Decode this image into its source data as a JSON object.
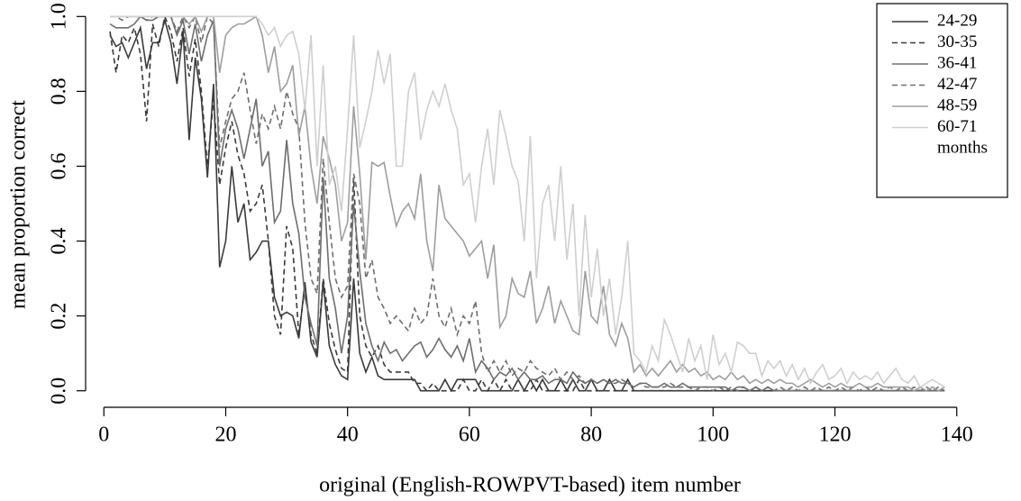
{
  "chart_data": {
    "type": "line",
    "xlabel": "original (English-ROWPVT-based) item number",
    "ylabel": "mean proportion correct",
    "legend_note": "months",
    "legend": "top-right",
    "x": [
      1,
      2,
      3,
      4,
      5,
      6,
      7,
      8,
      9,
      10,
      11,
      12,
      13,
      14,
      15,
      16,
      17,
      18,
      19,
      20,
      21,
      22,
      23,
      24,
      25,
      26,
      27,
      28,
      29,
      30,
      31,
      32,
      33,
      34,
      35,
      36,
      37,
      38,
      39,
      40,
      41,
      42,
      43,
      44,
      45,
      46,
      47,
      48,
      49,
      50,
      51,
      52,
      53,
      54,
      55,
      56,
      57,
      58,
      59,
      60,
      61,
      62,
      63,
      64,
      65,
      66,
      67,
      68,
      69,
      70,
      71,
      72,
      73,
      74,
      75,
      76,
      77,
      78,
      79,
      80,
      81,
      82,
      83,
      84,
      85,
      86,
      87,
      88,
      89,
      90,
      91,
      92,
      93,
      94,
      95,
      96,
      97,
      98,
      99,
      100,
      101,
      102,
      103,
      104,
      105,
      106,
      107,
      108,
      109,
      110,
      111,
      112,
      113,
      114,
      115,
      116,
      117,
      118,
      119,
      120,
      121,
      122,
      123,
      124,
      125,
      126,
      127,
      128,
      129,
      130,
      131,
      132,
      133,
      134,
      135,
      136,
      137,
      138
    ],
    "xlim": [
      -3,
      143
    ],
    "ylim": [
      -0.02,
      1.02
    ],
    "xticks": [
      0,
      20,
      40,
      60,
      80,
      100,
      120,
      140
    ],
    "yticks": [
      {
        "value": 0,
        "label": "0.0"
      },
      0.2,
      0.4,
      0.6,
      0.8,
      {
        "value": 1,
        "label": "1.0"
      }
    ],
    "series": [
      {
        "name": "24-29",
        "color": "#3a3a3a",
        "dashed": false,
        "values": [
          0.95,
          0.92,
          0.93,
          0.89,
          0.93,
          0.97,
          0.86,
          0.93,
          0.93,
          0.99,
          0.93,
          0.82,
          0.96,
          0.67,
          0.89,
          0.78,
          0.57,
          0.82,
          0.33,
          0.4,
          0.6,
          0.45,
          0.5,
          0.35,
          0.37,
          0.4,
          0.4,
          0.25,
          0.2,
          0.21,
          0.2,
          0.14,
          0.29,
          0.13,
          0.09,
          0.29,
          0.12,
          0.07,
          0.04,
          0.03,
          0.3,
          0.1,
          0.05,
          0.09,
          0.04,
          0.03,
          0.03,
          0.03,
          0.03,
          0.03,
          0.03,
          0,
          0,
          0,
          0,
          0.03,
          0,
          0.03,
          0.03,
          0.03,
          0.03,
          0,
          0,
          0,
          0,
          0,
          0,
          0.03,
          0,
          0.03,
          0,
          0.03,
          0,
          0,
          0.03,
          0,
          0.03,
          0,
          0,
          0.03,
          0,
          0,
          0.03,
          0,
          0,
          0.03,
          0,
          0,
          0,
          0,
          0,
          0,
          0,
          0,
          0,
          0,
          0,
          0,
          0,
          0,
          0,
          0,
          0,
          0,
          0,
          0,
          0,
          0,
          0,
          0,
          0,
          0,
          0,
          0,
          0,
          0,
          0,
          0,
          0,
          0,
          0,
          0,
          0,
          0,
          0,
          0,
          0,
          0,
          0,
          0,
          0,
          0,
          0,
          0,
          0,
          0,
          0,
          0
        ]
      },
      {
        "name": "30-35",
        "color": "#3a3a3a",
        "dashed": true,
        "values": [
          0.96,
          0.85,
          0.95,
          0.93,
          0.97,
          0.9,
          0.72,
          0.98,
          0.92,
          1.0,
          0.96,
          0.88,
          0.97,
          0.84,
          0.94,
          0.8,
          0.6,
          0.78,
          0.55,
          0.65,
          0.72,
          0.63,
          0.58,
          0.48,
          0.5,
          0.55,
          0.4,
          0.2,
          0.15,
          0.44,
          0.38,
          0.15,
          0.28,
          0.15,
          0.1,
          0.3,
          0.18,
          0.11,
          0.06,
          0.05,
          0.57,
          0.2,
          0.12,
          0.09,
          0.12,
          0.07,
          0.05,
          0.05,
          0.05,
          0.05,
          0.02,
          0.02,
          0,
          0.02,
          0,
          0,
          0,
          0,
          0.03,
          0,
          0,
          0.03,
          0,
          0.03,
          0,
          0.03,
          0,
          0,
          0,
          0,
          0.03,
          0,
          0,
          0,
          0,
          0,
          0,
          0.03,
          0,
          0,
          0,
          0,
          0,
          0,
          0,
          0,
          0,
          0,
          0,
          0,
          0,
          0,
          0,
          0,
          0,
          0,
          0,
          0,
          0,
          0,
          0,
          0,
          0,
          0,
          0,
          0,
          0,
          0,
          0,
          0,
          0,
          0,
          0,
          0,
          0,
          0,
          0,
          0,
          0,
          0,
          0,
          0,
          0,
          0,
          0,
          0,
          0,
          0,
          0,
          0,
          0,
          0,
          0,
          0,
          0,
          0,
          0,
          0
        ]
      },
      {
        "name": "36-41",
        "color": "#6e6e6e",
        "dashed": false,
        "values": [
          0.98,
          0.97,
          0.97,
          0.97,
          0.98,
          1.0,
          0.99,
          0.99,
          1.0,
          1.0,
          1.0,
          0.95,
          0.99,
          0.9,
          0.98,
          0.88,
          0.95,
          0.99,
          0.6,
          0.7,
          0.75,
          0.7,
          0.62,
          0.7,
          0.78,
          0.6,
          0.64,
          0.45,
          0.48,
          0.67,
          0.5,
          0.42,
          0.25,
          0.18,
          0.12,
          0.57,
          0.3,
          0.22,
          0.1,
          0.2,
          0.5,
          0.32,
          0.18,
          0.12,
          0.08,
          0.13,
          0.1,
          0.11,
          0.08,
          0.1,
          0.12,
          0.13,
          0.09,
          0.11,
          0.14,
          0.11,
          0.09,
          0.12,
          0.08,
          0.14,
          0.05,
          0.08,
          0.06,
          0.03,
          0.05,
          0.04,
          0.06,
          0.03,
          0.05,
          0.03,
          0.03,
          0.04,
          0.02,
          0.03,
          0.03,
          0.02,
          0.05,
          0.03,
          0.02,
          0.03,
          0.02,
          0.03,
          0.02,
          0.03,
          0.02,
          0.02,
          0.01,
          0.02,
          0.02,
          0.01,
          0.01,
          0.02,
          0.01,
          0.01,
          0.02,
          0.01,
          0.01,
          0.01,
          0.01,
          0.01,
          0.01,
          0.01,
          0,
          0.01,
          0.01,
          0,
          0.01,
          0,
          0.01,
          0,
          0,
          0,
          0,
          0,
          0,
          0,
          0,
          0,
          0,
          0,
          0,
          0,
          0,
          0,
          0,
          0,
          0,
          0,
          0,
          0,
          0,
          0,
          0,
          0,
          0,
          0,
          0,
          0
        ]
      },
      {
        "name": "42-47",
        "color": "#6e6e6e",
        "dashed": true,
        "values": [
          1.0,
          1.0,
          0.99,
          1.0,
          1.0,
          1.0,
          0.99,
          1.0,
          1.0,
          1.0,
          1.0,
          0.96,
          1.0,
          0.97,
          1.0,
          0.93,
          1.0,
          0.98,
          0.65,
          0.72,
          0.78,
          0.8,
          0.85,
          0.75,
          0.66,
          0.74,
          0.7,
          0.76,
          0.7,
          0.8,
          0.74,
          0.7,
          0.45,
          0.3,
          0.26,
          0.62,
          0.45,
          0.3,
          0.25,
          0.28,
          0.58,
          0.5,
          0.3,
          0.35,
          0.25,
          0.22,
          0.18,
          0.2,
          0.18,
          0.16,
          0.22,
          0.18,
          0.2,
          0.3,
          0.2,
          0.17,
          0.22,
          0.15,
          0.2,
          0.18,
          0.24,
          0.1,
          0.05,
          0.08,
          0.05,
          0.08,
          0.04,
          0.06,
          0.05,
          0.08,
          0.06,
          0.05,
          0.04,
          0.06,
          0.03,
          0.05,
          0.03,
          0.04,
          0.02,
          0.03,
          0.02,
          0.03,
          0.02,
          0.02,
          0.03,
          0.02,
          0.01,
          0.02,
          0.01,
          0.01,
          0.01,
          0.01,
          0.02,
          0.01,
          0.01,
          0.01,
          0,
          0.01,
          0.01,
          0,
          0.01,
          0,
          0.01,
          0,
          0.01,
          0,
          0.01,
          0,
          0.01,
          0,
          0.01,
          0,
          0.01,
          0,
          0.01,
          0,
          0.01,
          0,
          0.01,
          0,
          0.01,
          0,
          0.01,
          0,
          0.01,
          0,
          0.01,
          0,
          0.01,
          0,
          0.01,
          0,
          0.01,
          0,
          0.01,
          0,
          0.01,
          0
        ]
      },
      {
        "name": "48-59",
        "color": "#9e9e9e",
        "dashed": false,
        "values": [
          1.0,
          1.0,
          1.0,
          1.0,
          1.0,
          1.0,
          1.0,
          1.0,
          1.0,
          1.0,
          1.0,
          1.0,
          1.0,
          0.98,
          1.0,
          0.96,
          1.0,
          1.0,
          0.85,
          0.95,
          0.97,
          0.98,
          0.98,
          0.99,
          1.0,
          0.95,
          0.85,
          0.92,
          0.8,
          0.82,
          0.87,
          0.68,
          0.76,
          0.6,
          0.5,
          0.68,
          0.62,
          0.55,
          0.4,
          0.45,
          0.76,
          0.58,
          0.35,
          0.61,
          0.6,
          0.61,
          0.52,
          0.44,
          0.48,
          0.5,
          0.46,
          0.58,
          0.4,
          0.32,
          0.55,
          0.46,
          0.44,
          0.42,
          0.4,
          0.36,
          0.38,
          0.4,
          0.3,
          0.39,
          0.17,
          0.2,
          0.3,
          0.26,
          0.25,
          0.32,
          0.18,
          0.22,
          0.28,
          0.18,
          0.24,
          0.2,
          0.16,
          0.15,
          0.32,
          0.2,
          0.18,
          0.28,
          0.15,
          0.12,
          0.18,
          0.14,
          0.05,
          0.07,
          0.04,
          0.06,
          0.04,
          0.06,
          0.08,
          0.05,
          0.07,
          0.05,
          0.06,
          0.04,
          0.05,
          0.03,
          0.04,
          0.03,
          0.05,
          0.03,
          0.04,
          0.02,
          0.03,
          0.02,
          0.03,
          0.02,
          0.03,
          0.02,
          0.02,
          0.01,
          0.02,
          0.03,
          0.02,
          0.01,
          0.02,
          0.01,
          0.02,
          0.01,
          0.01,
          0.02,
          0.01,
          0.01,
          0.02,
          0.01,
          0.01,
          0.01,
          0.01,
          0.01,
          0,
          0.01,
          0,
          0.01,
          0,
          0.01
        ]
      },
      {
        "name": "60-71",
        "color": "#cfcfcf",
        "dashed": false,
        "values": [
          1.0,
          1.0,
          1.0,
          1.0,
          1.0,
          1.0,
          1.0,
          1.0,
          1.0,
          1.0,
          1.0,
          1.0,
          1.0,
          1.0,
          1.0,
          1.0,
          1.0,
          1.0,
          1.0,
          1.0,
          1.0,
          1.0,
          1.0,
          1.0,
          1.0,
          0.98,
          0.95,
          0.97,
          0.92,
          0.95,
          0.96,
          0.9,
          0.75,
          0.95,
          0.6,
          0.87,
          0.55,
          0.6,
          0.48,
          0.7,
          0.95,
          0.65,
          0.72,
          0.8,
          0.91,
          0.82,
          0.9,
          0.6,
          0.6,
          0.8,
          0.85,
          0.67,
          0.75,
          0.8,
          0.76,
          0.82,
          0.75,
          0.7,
          0.55,
          0.58,
          0.45,
          0.6,
          0.7,
          0.55,
          0.75,
          0.68,
          0.6,
          0.56,
          0.4,
          0.68,
          0.3,
          0.5,
          0.55,
          0.4,
          0.6,
          0.35,
          0.5,
          0.2,
          0.47,
          0.25,
          0.38,
          0.2,
          0.3,
          0.15,
          0.25,
          0.4,
          0.1,
          0.08,
          0.05,
          0.12,
          0.08,
          0.19,
          0.15,
          0.1,
          0.05,
          0.14,
          0.08,
          0.12,
          0.03,
          0.15,
          0.07,
          0.1,
          0.05,
          0.13,
          0.12,
          0.1,
          0.1,
          0.04,
          0.08,
          0.06,
          0.08,
          0.04,
          0.07,
          0.03,
          0.06,
          0.02,
          0.05,
          0.07,
          0.03,
          0.04,
          0.06,
          0.02,
          0.05,
          0.03,
          0.04,
          0.03,
          0.05,
          0.02,
          0.04,
          0.06,
          0.03,
          0.02,
          0.04,
          0.01,
          0.02,
          0.03,
          0.02,
          0.01
        ]
      }
    ]
  }
}
